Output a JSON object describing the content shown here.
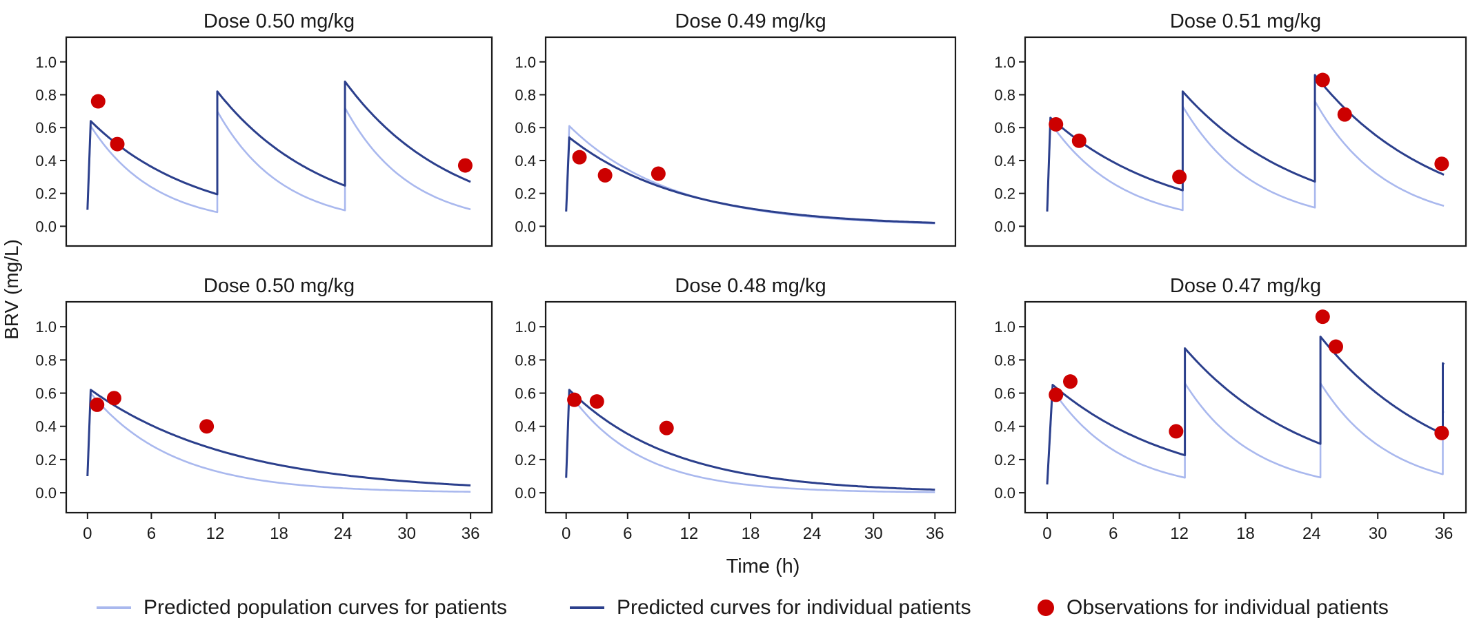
{
  "figure": {
    "ylabel": "BRV (mg/L)",
    "xlabel": "Time (h)"
  },
  "colors": {
    "population": "#a9b8ee",
    "individual": "#2b3f8c",
    "observation": "#cc0000",
    "axis": "#1a1a1a"
  },
  "legend": {
    "population_label": "Predicted population curves for patients",
    "individual_label": "Predicted curves for individual patients",
    "observation_label": "Observations for individual patients"
  },
  "chart_data": [
    {
      "type": "line",
      "title": "Dose 0.50 mg/kg",
      "xlim": [
        -2,
        38
      ],
      "ylim": [
        -0.12,
        1.15
      ],
      "xticks": [
        0,
        6,
        12,
        18,
        24,
        30,
        36
      ],
      "xticks_shown": false,
      "yticks": [
        0.0,
        0.2,
        0.4,
        0.6,
        0.8,
        1.0
      ],
      "yticklabels": [
        "0.0",
        "0.2",
        "0.4",
        "0.6",
        "0.8",
        "1.0"
      ],
      "series": [
        {
          "role": "population",
          "dose_times": [
            0.3,
            12.2,
            24.2
          ],
          "peak": [
            0.61,
            0.7,
            0.72
          ],
          "k": 0.165,
          "end_time": 36,
          "start": 0.1
        },
        {
          "role": "individual",
          "dose_times": [
            0.3,
            12.2,
            24.2
          ],
          "peak": [
            0.64,
            0.82,
            0.88
          ],
          "k": 0.1,
          "end_time": 36,
          "start": 0.1
        }
      ],
      "observations": [
        [
          1.0,
          0.76
        ],
        [
          2.8,
          0.5
        ],
        [
          35.5,
          0.37
        ]
      ]
    },
    {
      "type": "line",
      "title": "Dose 0.49 mg/kg",
      "xlim": [
        -2,
        38
      ],
      "ylim": [
        -0.12,
        1.15
      ],
      "xticks": [
        0,
        6,
        12,
        18,
        24,
        30,
        36
      ],
      "xticks_shown": false,
      "yticks": [
        0.0,
        0.2,
        0.4,
        0.6,
        0.8,
        1.0
      ],
      "yticklabels": [
        "0.0",
        "0.2",
        "0.4",
        "0.6",
        "0.8",
        "1.0"
      ],
      "series": [
        {
          "role": "population",
          "dose_times": [
            0.3
          ],
          "peak": [
            0.61
          ],
          "k": 0.1,
          "end_time": 36,
          "start": 0.09
        },
        {
          "role": "individual",
          "dose_times": [
            0.3
          ],
          "peak": [
            0.54
          ],
          "k": 0.091,
          "end_time": 36,
          "start": 0.09
        }
      ],
      "observations": [
        [
          1.3,
          0.42
        ],
        [
          3.8,
          0.31
        ],
        [
          9.0,
          0.32
        ]
      ]
    },
    {
      "type": "line",
      "title": "Dose 0.51 mg/kg",
      "xlim": [
        -2,
        38
      ],
      "ylim": [
        -0.12,
        1.15
      ],
      "xticks": [
        0,
        6,
        12,
        18,
        24,
        30,
        36
      ],
      "xticks_shown": false,
      "yticks": [
        0.0,
        0.2,
        0.4,
        0.6,
        0.8,
        1.0
      ],
      "yticklabels": [
        "0.0",
        "0.2",
        "0.4",
        "0.6",
        "0.8",
        "1.0"
      ],
      "series": [
        {
          "role": "population",
          "dose_times": [
            0.3,
            12.3,
            24.3
          ],
          "peak": [
            0.63,
            0.73,
            0.76
          ],
          "k": 0.155,
          "end_time": 36,
          "start": 0.09
        },
        {
          "role": "individual",
          "dose_times": [
            0.3,
            12.3,
            24.3
          ],
          "peak": [
            0.66,
            0.82,
            0.92
          ],
          "k": 0.092,
          "end_time": 36,
          "start": 0.09
        }
      ],
      "observations": [
        [
          0.8,
          0.62
        ],
        [
          2.9,
          0.52
        ],
        [
          12.0,
          0.3
        ],
        [
          25.0,
          0.89
        ],
        [
          27.0,
          0.68
        ],
        [
          35.8,
          0.38
        ]
      ]
    },
    {
      "type": "line",
      "title": "Dose 0.50 mg/kg",
      "xlim": [
        -2,
        38
      ],
      "ylim": [
        -0.12,
        1.15
      ],
      "xticks": [
        0,
        6,
        12,
        18,
        24,
        30,
        36
      ],
      "xticks_shown": true,
      "xticklabels": [
        "0",
        "6",
        "12",
        "18",
        "24",
        "30",
        "36"
      ],
      "yticks": [
        0.0,
        0.2,
        0.4,
        0.6,
        0.8,
        1.0
      ],
      "yticklabels": [
        "0.0",
        "0.2",
        "0.4",
        "0.6",
        "0.8",
        "1.0"
      ],
      "series": [
        {
          "role": "population",
          "dose_times": [
            0.3
          ],
          "peak": [
            0.6
          ],
          "k": 0.13,
          "end_time": 36,
          "start": 0.1
        },
        {
          "role": "individual",
          "dose_times": [
            0.3
          ],
          "peak": [
            0.62
          ],
          "k": 0.074,
          "end_time": 36,
          "start": 0.1
        }
      ],
      "observations": [
        [
          0.9,
          0.53
        ],
        [
          2.5,
          0.57
        ],
        [
          11.2,
          0.4
        ]
      ]
    },
    {
      "type": "line",
      "title": "Dose 0.48 mg/kg",
      "xlim": [
        -2,
        38
      ],
      "ylim": [
        -0.12,
        1.15
      ],
      "xticks": [
        0,
        6,
        12,
        18,
        24,
        30,
        36
      ],
      "xticks_shown": true,
      "xticklabels": [
        "0",
        "6",
        "12",
        "18",
        "24",
        "30",
        "36"
      ],
      "yticks": [
        0.0,
        0.2,
        0.4,
        0.6,
        0.8,
        1.0
      ],
      "yticklabels": [
        "0.0",
        "0.2",
        "0.4",
        "0.6",
        "0.8",
        "1.0"
      ],
      "series": [
        {
          "role": "population",
          "dose_times": [
            0.3
          ],
          "peak": [
            0.6
          ],
          "k": 0.145,
          "end_time": 36,
          "start": 0.09
        },
        {
          "role": "individual",
          "dose_times": [
            0.3
          ],
          "peak": [
            0.62
          ],
          "k": 0.098,
          "end_time": 36,
          "start": 0.09
        }
      ],
      "observations": [
        [
          0.8,
          0.56
        ],
        [
          3.0,
          0.55
        ],
        [
          9.8,
          0.39
        ]
      ]
    },
    {
      "type": "line",
      "title": "Dose 0.47 mg/kg",
      "xlim": [
        -2,
        38
      ],
      "ylim": [
        -0.12,
        1.15
      ],
      "xticks": [
        0,
        6,
        12,
        18,
        24,
        30,
        36
      ],
      "xticks_shown": true,
      "xticklabels": [
        "0",
        "6",
        "12",
        "18",
        "24",
        "30",
        "36"
      ],
      "yticks": [
        0.0,
        0.2,
        0.4,
        0.6,
        0.8,
        1.0
      ],
      "yticklabels": [
        "0.0",
        "0.2",
        "0.4",
        "0.6",
        "0.8",
        "1.0"
      ],
      "series": [
        {
          "role": "population",
          "dose_times": [
            0.5,
            12.5,
            24.8,
            35.9
          ],
          "peak": [
            0.62,
            0.66,
            0.66,
            0.49
          ],
          "k": 0.16,
          "end_time": 36,
          "start": 0.05
        },
        {
          "role": "individual",
          "dose_times": [
            0.5,
            12.5,
            24.8,
            35.9
          ],
          "peak": [
            0.65,
            0.87,
            0.94,
            0.78
          ],
          "k": 0.088,
          "end_time": 36,
          "start": 0.05
        }
      ],
      "observations": [
        [
          0.8,
          0.59
        ],
        [
          2.1,
          0.67
        ],
        [
          11.7,
          0.37
        ],
        [
          25.0,
          1.06
        ],
        [
          26.2,
          0.88
        ],
        [
          35.8,
          0.36
        ]
      ]
    }
  ]
}
